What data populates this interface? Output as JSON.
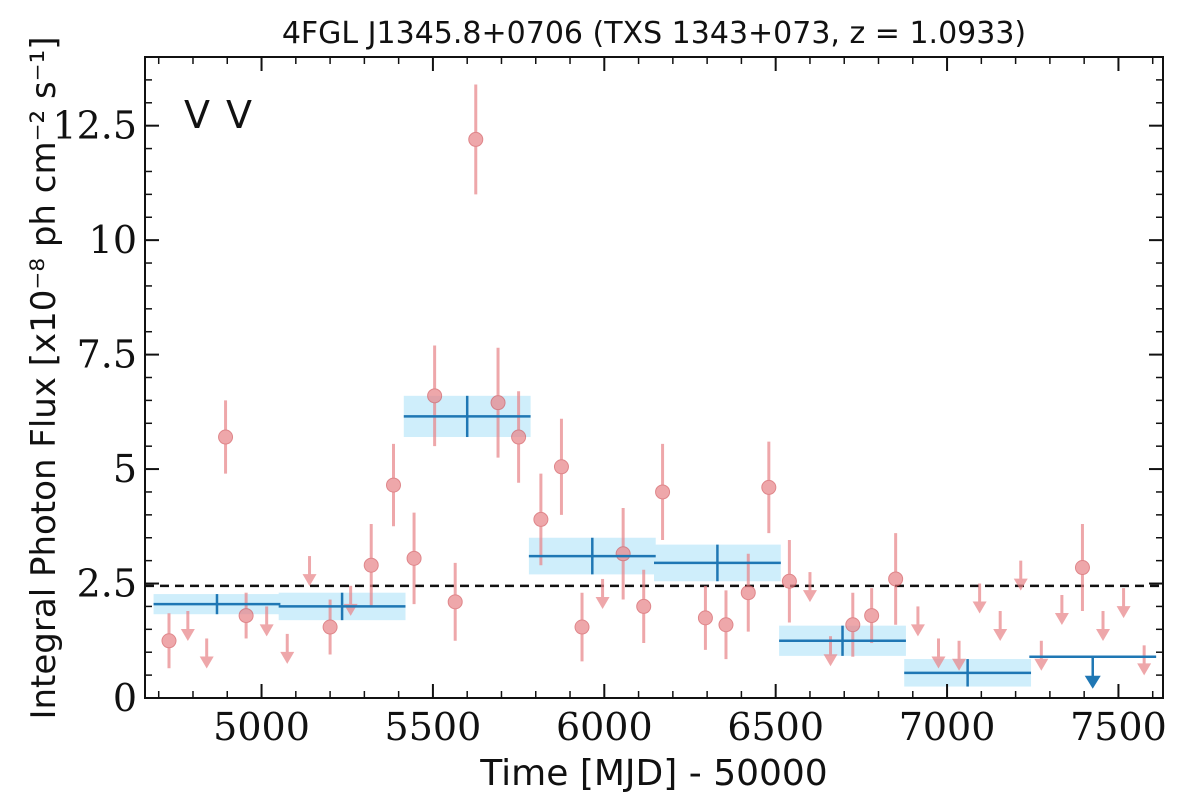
{
  "chart_data": {
    "type": "scatter",
    "title": "4FGL J1345.8+0706 (TXS 1343+073, z = 1.0933)",
    "xlabel": "Time [MJD] - 50000",
    "ylabel": "Integral Photon Flux [x10⁻⁸ ph cm⁻² s⁻¹]",
    "xlim": [
      4660,
      7630
    ],
    "ylim": [
      0,
      14
    ],
    "xticks": [
      5000,
      5500,
      6000,
      6500,
      7000,
      7500
    ],
    "xtick_labels": [
      "5000",
      "5500",
      "6000",
      "6500",
      "7000",
      "7500"
    ],
    "yticks": [
      0,
      2.5,
      5,
      7.5,
      10,
      12.5
    ],
    "ytick_labels": [
      "0",
      "2.5",
      "5",
      "7.5",
      "10",
      "12.5"
    ],
    "legend": {
      "placement": "top-left",
      "entries": [
        {
          "label": "V",
          "color": "#1f77b4"
        },
        {
          "label": "V",
          "color": "#d62728"
        }
      ]
    },
    "mean_flux_line": 2.45,
    "colors": {
      "long_bins": "#1f77b4",
      "long_band": "#cfeefb",
      "short_bins": "#e8868a",
      "mean_line": "#111111"
    },
    "series": [
      {
        "style": "long-bins",
        "points": [
          {
            "x": 4870,
            "xerr": 185,
            "y": 2.05,
            "yerr": 0.22
          },
          {
            "x": 5235,
            "xerr": 185,
            "y": 2.0,
            "yerr": 0.3
          },
          {
            "x": 5600,
            "xerr": 185,
            "y": 6.15,
            "yerr": 0.45
          },
          {
            "x": 5965,
            "xerr": 185,
            "y": 3.1,
            "yerr": 0.4
          },
          {
            "x": 6330,
            "xerr": 185,
            "y": 2.95,
            "yerr": 0.4
          },
          {
            "x": 6695,
            "xerr": 185,
            "y": 1.25,
            "yerr": 0.33
          },
          {
            "x": 7060,
            "xerr": 185,
            "y": 0.55,
            "yerr": 0.3
          }
        ],
        "upper_limits": [
          {
            "x": 7425,
            "xerr": 185,
            "y": 0.9
          }
        ]
      },
      {
        "style": "short-bins",
        "points": [
          {
            "x": 4730,
            "y": 1.25,
            "yerr": 0.6
          },
          {
            "x": 4895,
            "y": 5.7,
            "yerr": 0.8
          },
          {
            "x": 4955,
            "y": 1.8,
            "yerr": 0.5
          },
          {
            "x": 5200,
            "y": 1.55,
            "yerr": 0.6
          },
          {
            "x": 5320,
            "y": 2.9,
            "yerr": 0.9
          },
          {
            "x": 5385,
            "y": 4.65,
            "yerr": 0.9
          },
          {
            "x": 5445,
            "y": 3.05,
            "yerr": 1.0
          },
          {
            "x": 5505,
            "y": 6.6,
            "yerr": 1.1
          },
          {
            "x": 5565,
            "y": 2.1,
            "yerr": 0.85
          },
          {
            "x": 5625,
            "y": 12.2,
            "yerr": 1.2
          },
          {
            "x": 5690,
            "y": 6.45,
            "yerr": 1.2
          },
          {
            "x": 5750,
            "y": 5.7,
            "yerr": 1.0
          },
          {
            "x": 5815,
            "y": 3.9,
            "yerr": 1.0
          },
          {
            "x": 5875,
            "y": 5.05,
            "yerr": 1.05
          },
          {
            "x": 5935,
            "y": 1.55,
            "yerr": 0.75
          },
          {
            "x": 6055,
            "y": 3.15,
            "yerr": 1.0
          },
          {
            "x": 6115,
            "y": 2.0,
            "yerr": 0.8
          },
          {
            "x": 6170,
            "y": 4.5,
            "yerr": 1.05
          },
          {
            "x": 6295,
            "y": 1.75,
            "yerr": 0.7
          },
          {
            "x": 6355,
            "y": 1.6,
            "yerr": 0.75
          },
          {
            "x": 6420,
            "y": 2.3,
            "yerr": 0.85
          },
          {
            "x": 6480,
            "y": 4.6,
            "yerr": 1.0
          },
          {
            "x": 6540,
            "y": 2.55,
            "yerr": 0.9
          },
          {
            "x": 6725,
            "y": 1.6,
            "yerr": 0.7
          },
          {
            "x": 6780,
            "y": 1.8,
            "yerr": 0.6
          },
          {
            "x": 6850,
            "y": 2.6,
            "yerr": 1.0
          },
          {
            "x": 7395,
            "y": 2.85,
            "yerr": 0.95
          }
        ],
        "upper_limits": [
          {
            "x": 4785,
            "y": 1.9
          },
          {
            "x": 4840,
            "y": 1.3
          },
          {
            "x": 5015,
            "y": 2.0
          },
          {
            "x": 5075,
            "y": 1.4
          },
          {
            "x": 5140,
            "y": 3.1
          },
          {
            "x": 5260,
            "y": 2.45
          },
          {
            "x": 5995,
            "y": 2.6
          },
          {
            "x": 6600,
            "y": 2.75
          },
          {
            "x": 6660,
            "y": 1.35
          },
          {
            "x": 6915,
            "y": 2.0
          },
          {
            "x": 6975,
            "y": 1.3
          },
          {
            "x": 7035,
            "y": 1.25
          },
          {
            "x": 7095,
            "y": 2.5
          },
          {
            "x": 7155,
            "y": 1.9
          },
          {
            "x": 7215,
            "y": 3.0
          },
          {
            "x": 7275,
            "y": 1.25
          },
          {
            "x": 7335,
            "y": 2.25
          },
          {
            "x": 7455,
            "y": 1.9
          },
          {
            "x": 7515,
            "y": 2.4
          },
          {
            "x": 7575,
            "y": 1.15
          }
        ]
      }
    ]
  }
}
